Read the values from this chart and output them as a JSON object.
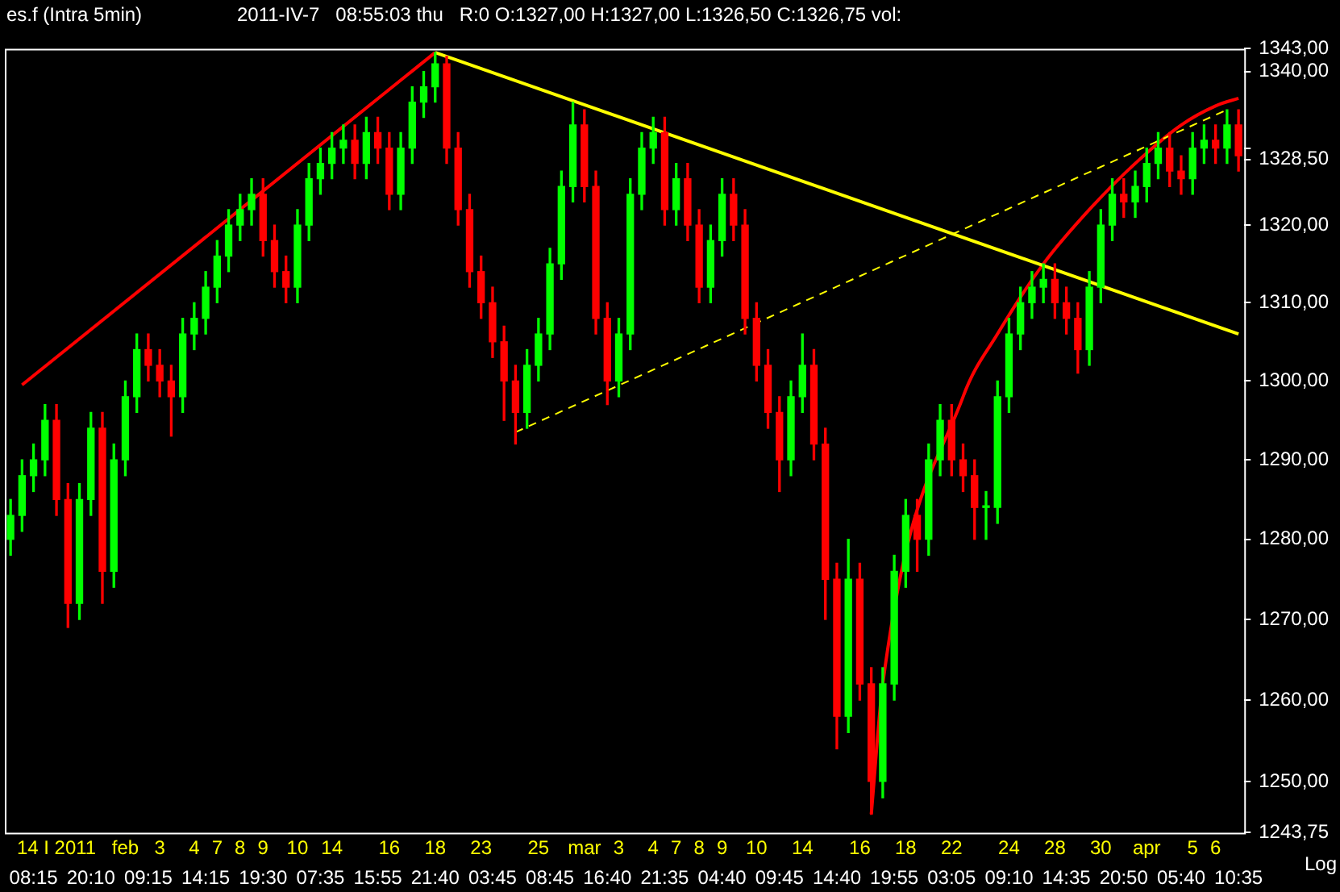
{
  "chart_data": {
    "type": "candlestick",
    "title": "es.f (Intra 5min)",
    "subtitle": "2011-IV-7   08:55:03 thu   R:0 O:1327,00 H:1327,00 L:1326,50 C:1326,75 vol:",
    "categories": [
      null,
      null,
      "\n08:15",
      null,
      "14 I 2011\n",
      null,
      null,
      "\n20:10",
      null,
      null,
      "feb\n",
      null,
      "\n09:15",
      "3\n",
      null,
      null,
      "4\n",
      "\n14:15",
      "7\n",
      null,
      "8\n",
      null,
      "9\n19:30",
      null,
      null,
      "10\n",
      null,
      "\n07:35",
      "14\n",
      null,
      null,
      null,
      "\n15:55",
      "16\n",
      null,
      null,
      null,
      "18\n21:40",
      null,
      null,
      null,
      "23\n",
      "\n03:45",
      null,
      null,
      null,
      "25\n",
      "\n08:45",
      null,
      null,
      "mar\n",
      null,
      "\n16:40",
      "3\n",
      null,
      null,
      "4\n",
      "\n21:35",
      "7\n",
      null,
      "8\n",
      null,
      "9\n04:40",
      null,
      null,
      "10\n",
      null,
      "\n09:45",
      null,
      "14\n",
      null,
      null,
      "\n14:40",
      null,
      "16\n",
      null,
      null,
      "\n19:55",
      "18\n",
      null,
      null,
      null,
      "22\n03:05",
      null,
      null,
      null,
      null,
      "24\n09:10",
      null,
      null,
      null,
      "28\n",
      "\n14:35",
      null,
      null,
      "30\n",
      null,
      "\n20:50",
      null,
      "apr\n",
      null,
      null,
      "\n05:40",
      "5\n",
      null,
      "6\n",
      null,
      "\n10:35"
    ],
    "series": [
      {
        "ohlc": [
          [
            1280,
            1285,
            1278,
            1283
          ],
          [
            1283,
            1290,
            1281,
            1288
          ],
          [
            1288,
            1292,
            1286,
            1290
          ],
          [
            1290,
            1297,
            1288,
            1295
          ],
          [
            1295,
            1297,
            1283,
            1285
          ],
          [
            1285,
            1287,
            1269,
            1272
          ],
          [
            1272,
            1287,
            1270,
            1285
          ],
          [
            1285,
            1296,
            1283,
            1294
          ],
          [
            1294,
            1296,
            1272,
            1276
          ],
          [
            1276,
            1292,
            1274,
            1290
          ],
          [
            1290,
            1300,
            1288,
            1298
          ],
          [
            1298,
            1306,
            1296,
            1304
          ],
          [
            1304,
            1306,
            1300,
            1302
          ],
          [
            1302,
            1304,
            1298,
            1300
          ],
          [
            1300,
            1302,
            1293,
            1298
          ],
          [
            1298,
            1308,
            1296,
            1306
          ],
          [
            1306,
            1310,
            1304,
            1308
          ],
          [
            1308,
            1314,
            1306,
            1312
          ],
          [
            1312,
            1318,
            1310,
            1316
          ],
          [
            1316,
            1322,
            1314,
            1320
          ],
          [
            1320,
            1324,
            1318,
            1322
          ],
          [
            1322,
            1326,
            1320,
            1324
          ],
          [
            1324,
            1326,
            1316,
            1318
          ],
          [
            1318,
            1320,
            1312,
            1314
          ],
          [
            1314,
            1316,
            1310,
            1312
          ],
          [
            1312,
            1322,
            1310,
            1320
          ],
          [
            1320,
            1328,
            1318,
            1326
          ],
          [
            1326,
            1330,
            1324,
            1328
          ],
          [
            1328,
            1332,
            1326,
            1330
          ],
          [
            1330,
            1333,
            1328,
            1331
          ],
          [
            1331,
            1333,
            1326,
            1328
          ],
          [
            1328,
            1334,
            1326,
            1332
          ],
          [
            1332,
            1334,
            1328,
            1330
          ],
          [
            1330,
            1332,
            1322,
            1324
          ],
          [
            1324,
            1332,
            1322,
            1330
          ],
          [
            1330,
            1338,
            1328,
            1336
          ],
          [
            1336,
            1340,
            1334,
            1338
          ],
          [
            1338,
            1342.5,
            1336,
            1341
          ],
          [
            1341,
            1342,
            1328,
            1330
          ],
          [
            1330,
            1332,
            1320,
            1322
          ],
          [
            1322,
            1324,
            1312,
            1314
          ],
          [
            1314,
            1316,
            1308,
            1310
          ],
          [
            1310,
            1312,
            1303,
            1305
          ],
          [
            1305,
            1307,
            1295,
            1300
          ],
          [
            1300,
            1302,
            1292,
            1296
          ],
          [
            1296,
            1304,
            1294,
            1302
          ],
          [
            1302,
            1308,
            1300,
            1306
          ],
          [
            1306,
            1317,
            1304,
            1315
          ],
          [
            1315,
            1327,
            1313,
            1325
          ],
          [
            1325,
            1336,
            1323,
            1333
          ],
          [
            1333,
            1335,
            1323,
            1325
          ],
          [
            1325,
            1327,
            1306,
            1308
          ],
          [
            1308,
            1310,
            1297,
            1300
          ],
          [
            1300,
            1308,
            1298,
            1306
          ],
          [
            1306,
            1326,
            1304,
            1324
          ],
          [
            1324,
            1332,
            1322,
            1330
          ],
          [
            1330,
            1334,
            1328,
            1332
          ],
          [
            1332,
            1334,
            1320,
            1322
          ],
          [
            1322,
            1328,
            1320,
            1326
          ],
          [
            1326,
            1328,
            1318,
            1320
          ],
          [
            1320,
            1322,
            1310,
            1312
          ],
          [
            1312,
            1320,
            1310,
            1318
          ],
          [
            1318,
            1326,
            1316,
            1324
          ],
          [
            1324,
            1326,
            1318,
            1320
          ],
          [
            1320,
            1322,
            1306,
            1308
          ],
          [
            1308,
            1310,
            1300,
            1302
          ],
          [
            1302,
            1304,
            1294,
            1296
          ],
          [
            1296,
            1298,
            1286,
            1290
          ],
          [
            1290,
            1300,
            1288,
            1298
          ],
          [
            1298,
            1306,
            1296,
            1302
          ],
          [
            1302,
            1304,
            1290,
            1292
          ],
          [
            1292,
            1294,
            1270,
            1275
          ],
          [
            1275,
            1277,
            1254,
            1258
          ],
          [
            1258,
            1280,
            1256,
            1275
          ],
          [
            1275,
            1277,
            1260,
            1262
          ],
          [
            1262,
            1264,
            1246,
            1250
          ],
          [
            1250,
            1264,
            1248,
            1262
          ],
          [
            1262,
            1278,
            1260,
            1276
          ],
          [
            1276,
            1285,
            1274,
            1283
          ],
          [
            1283,
            1285,
            1276,
            1280
          ],
          [
            1280,
            1292,
            1278,
            1290
          ],
          [
            1290,
            1297,
            1288,
            1295
          ],
          [
            1295,
            1297,
            1288,
            1290
          ],
          [
            1290,
            1292,
            1286,
            1288
          ],
          [
            1288,
            1290,
            1280,
            1284
          ],
          [
            1284,
            1286,
            1280,
            1284
          ],
          [
            1284,
            1300,
            1282,
            1298
          ],
          [
            1298,
            1308,
            1296,
            1306
          ],
          [
            1306,
            1312,
            1304,
            1310
          ],
          [
            1310,
            1314,
            1308,
            1312
          ],
          [
            1312,
            1315,
            1310,
            1313
          ],
          [
            1313,
            1315,
            1308,
            1310
          ],
          [
            1310,
            1312,
            1306,
            1308
          ],
          [
            1308,
            1310,
            1301,
            1304
          ],
          [
            1304,
            1314,
            1302,
            1312
          ],
          [
            1312,
            1322,
            1310,
            1320
          ],
          [
            1320,
            1326,
            1318,
            1324
          ],
          [
            1324,
            1326,
            1321,
            1323
          ],
          [
            1323,
            1327,
            1321,
            1325
          ],
          [
            1325,
            1330,
            1323,
            1328
          ],
          [
            1328,
            1332,
            1326,
            1330
          ],
          [
            1330,
            1332,
            1325,
            1327
          ],
          [
            1327,
            1329,
            1324,
            1326
          ],
          [
            1326,
            1332,
            1324,
            1330
          ],
          [
            1330,
            1333,
            1328,
            1331
          ],
          [
            1331,
            1333,
            1328,
            1330
          ],
          [
            1330,
            1335,
            1328,
            1333
          ],
          [
            1333,
            1335,
            1327,
            1329
          ]
        ],
        "colors": [
          "#00ff00",
          "#00ff00",
          "#00ff00",
          "#00ff00",
          "#ff0000",
          "#ff0000",
          "#00ff00",
          "#00ff00",
          "#ff0000",
          "#00ff00",
          "#00ff00",
          "#00ff00",
          "#ff0000",
          "#ff0000",
          "#ff0000",
          "#00ff00",
          "#00ff00",
          "#00ff00",
          "#00ff00",
          "#00ff00",
          "#00ff00",
          "#00ff00",
          "#ff0000",
          "#ff0000",
          "#ff0000",
          "#00ff00",
          "#00ff00",
          "#00ff00",
          "#00ff00",
          "#00ff00",
          "#ff0000",
          "#00ff00",
          "#ff0000",
          "#ff0000",
          "#00ff00",
          "#00ff00",
          "#00ff00",
          "#00ff00",
          "#ff0000",
          "#ff0000",
          "#ff0000",
          "#ff0000",
          "#ff0000",
          "#ff0000",
          "#ff0000",
          "#00ff00",
          "#00ff00",
          "#00ff00",
          "#00ff00",
          "#00ff00",
          "#ff0000",
          "#ff0000",
          "#ff0000",
          "#00ff00",
          "#00ff00",
          "#00ff00",
          "#00ff00",
          "#ff0000",
          "#00ff00",
          "#ff0000",
          "#ff0000",
          "#00ff00",
          "#00ff00",
          "#ff0000",
          "#ff0000",
          "#ff0000",
          "#ff0000",
          "#ff0000",
          "#00ff00",
          "#00ff00",
          "#ff0000",
          "#ff0000",
          "#ff0000",
          "#00ff00",
          "#ff0000",
          "#ff0000",
          "#00ff00",
          "#00ff00",
          "#00ff00",
          "#ff0000",
          "#00ff00",
          "#00ff00",
          "#ff0000",
          "#ff0000",
          "#ff0000",
          "#00ff00",
          "#00ff00",
          "#00ff00",
          "#00ff00",
          "#00ff00",
          "#00ff00",
          "#ff0000",
          "#ff0000",
          "#ff0000",
          "#00ff00",
          "#00ff00",
          "#00ff00",
          "#ff0000",
          "#00ff00",
          "#00ff00",
          "#00ff00",
          "#ff0000",
          "#ff0000",
          "#00ff00",
          "#00ff00",
          "#ff0000",
          "#00ff00",
          "#ff0000"
        ]
      },
      {
        "type": "line",
        "color": "#ff0000",
        "values": [
          null,
          1299.5,
          null,
          null,
          null,
          null,
          null,
          null,
          null,
          null,
          null,
          null,
          null,
          null,
          null,
          null,
          null,
          null,
          null,
          null,
          null,
          null,
          null,
          null,
          null,
          null,
          null,
          null,
          null,
          null,
          null,
          null,
          null,
          null,
          null,
          null,
          null,
          1342.5,
          null,
          null,
          null,
          null,
          null,
          null,
          null,
          null,
          null,
          null,
          null,
          null,
          null,
          null,
          null,
          null,
          null,
          null,
          null,
          null,
          null,
          null,
          null,
          null,
          null,
          null,
          null,
          null,
          null,
          null,
          null,
          null,
          null,
          null,
          null,
          null,
          null,
          null,
          null,
          null,
          null,
          null,
          null,
          null,
          null,
          null,
          null,
          null,
          null,
          null,
          null,
          null,
          null,
          null,
          null,
          null,
          null,
          null,
          null,
          null,
          null,
          null,
          null,
          null,
          null,
          null,
          null,
          null,
          null,
          null
        ]
      },
      {
        "type": "line",
        "color": "#ffff00",
        "values": [
          null,
          null,
          null,
          null,
          null,
          null,
          null,
          null,
          null,
          null,
          null,
          null,
          null,
          null,
          null,
          null,
          null,
          null,
          null,
          null,
          null,
          null,
          null,
          null,
          null,
          null,
          null,
          null,
          null,
          null,
          null,
          null,
          null,
          null,
          null,
          null,
          null,
          1342.5,
          null,
          null,
          null,
          null,
          null,
          null,
          null,
          null,
          null,
          null,
          null,
          null,
          null,
          null,
          null,
          null,
          null,
          null,
          null,
          null,
          null,
          null,
          null,
          null,
          null,
          null,
          null,
          null,
          null,
          null,
          null,
          null,
          null,
          null,
          null,
          null,
          null,
          null,
          null,
          null,
          null,
          null,
          null,
          null,
          null,
          null,
          null,
          null,
          null,
          null,
          null,
          null,
          null,
          null,
          null,
          null,
          null,
          null,
          null,
          null,
          null,
          null,
          null,
          null,
          null,
          null,
          null,
          null,
          null,
          1306
        ]
      },
      {
        "type": "line",
        "color": "#ffff00",
        "line_style": "dashed",
        "values": [
          null,
          null,
          null,
          null,
          null,
          null,
          null,
          null,
          null,
          null,
          null,
          null,
          null,
          null,
          null,
          null,
          null,
          null,
          null,
          null,
          null,
          null,
          null,
          null,
          null,
          null,
          null,
          null,
          null,
          null,
          null,
          null,
          null,
          null,
          null,
          null,
          null,
          null,
          null,
          null,
          null,
          null,
          null,
          null,
          1293.5,
          null,
          null,
          null,
          null,
          null,
          null,
          null,
          null,
          null,
          null,
          null,
          null,
          null,
          null,
          null,
          null,
          null,
          null,
          null,
          null,
          null,
          null,
          null,
          null,
          null,
          null,
          null,
          null,
          null,
          null,
          null,
          null,
          null,
          null,
          null,
          null,
          null,
          null,
          null,
          null,
          null,
          null,
          null,
          null,
          null,
          null,
          null,
          null,
          null,
          null,
          null,
          null,
          null,
          null,
          null,
          null,
          null,
          null,
          null,
          null,
          null,
          1335,
          null
        ]
      },
      {
        "type": "line",
        "color": "#ff0000",
        "values": [
          null,
          null,
          null,
          null,
          null,
          null,
          null,
          null,
          null,
          null,
          null,
          null,
          null,
          null,
          null,
          null,
          null,
          null,
          null,
          null,
          null,
          null,
          null,
          null,
          null,
          null,
          null,
          null,
          null,
          null,
          null,
          null,
          null,
          null,
          null,
          null,
          null,
          null,
          null,
          null,
          null,
          null,
          null,
          null,
          null,
          null,
          null,
          null,
          null,
          null,
          null,
          null,
          null,
          null,
          null,
          null,
          null,
          null,
          null,
          null,
          null,
          null,
          null,
          null,
          null,
          null,
          null,
          null,
          null,
          null,
          null,
          null,
          null,
          null,
          null,
          1246,
          1262,
          null,
          null,
          null,
          null,
          null,
          null,
          1298,
          null,
          null,
          1306,
          null,
          null,
          null,
          1315,
          null,
          null,
          null,
          1322,
          null,
          null,
          null,
          1328,
          null,
          null,
          null,
          1333,
          null,
          null,
          1335.5,
          null,
          1336.5
        ]
      }
    ],
    "ylim": [
      1243.75,
      1343
    ],
    "yticks": [
      {
        "value": 1243.75,
        "label": "1243,75"
      },
      {
        "value": 1250,
        "label": "1250,00"
      },
      {
        "value": 1260,
        "label": "1260,00"
      },
      {
        "value": 1270,
        "label": "1270,00"
      },
      {
        "value": 1280,
        "label": "1280,00"
      },
      {
        "value": 1290,
        "label": "1290,00"
      },
      {
        "value": 1300,
        "label": "1300,00"
      },
      {
        "value": 1310,
        "label": "1310,00"
      },
      {
        "value": 1320,
        "label": "1320,00"
      },
      {
        "value": 1328.5,
        "label": "1328,50"
      },
      {
        "value": 1330,
        "label": null
      },
      {
        "value": 1340,
        "label": "1340,00"
      },
      {
        "value": 1343,
        "label": "1343,00"
      }
    ],
    "log": true,
    "legend": false,
    "marker": "none",
    "annotations": [
      "Log"
    ]
  }
}
